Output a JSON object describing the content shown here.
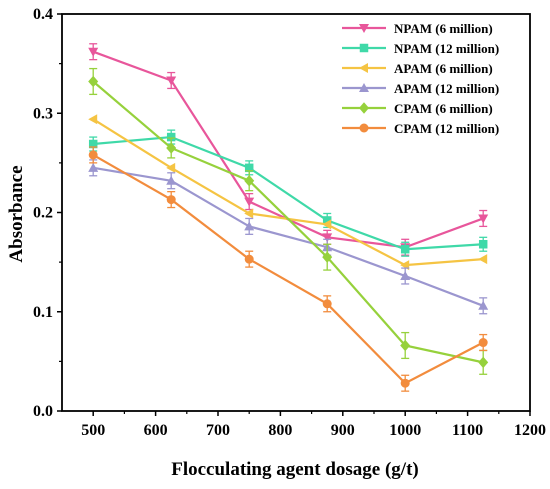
{
  "chart_data": {
    "type": "line",
    "title": "",
    "xlabel": "Flocculating agent dosage (g/t)",
    "ylabel": "Absorbance",
    "xlim": [
      450,
      1200
    ],
    "ylim": [
      0.0,
      0.4
    ],
    "xticks": [
      500,
      600,
      700,
      800,
      900,
      1000,
      1100,
      1200
    ],
    "yticks": [
      0.0,
      0.1,
      0.2,
      0.3,
      0.4
    ],
    "xtick_labels": [
      "500",
      "600",
      "700",
      "800",
      "900",
      "1000",
      "1100",
      "1200"
    ],
    "ytick_labels": [
      "0.0",
      "0.1",
      "0.2",
      "0.3",
      "0.4"
    ],
    "grid": false,
    "legend_position": "top-right",
    "x": [
      500,
      625,
      750,
      875,
      1000,
      1125
    ],
    "series": [
      {
        "name": "NPAM (6 million)",
        "color": "#e8569b",
        "marker": "triangle-down",
        "values": [
          0.362,
          0.333,
          0.211,
          0.175,
          0.165,
          0.194
        ],
        "errors": [
          0.008,
          0.008,
          0.008,
          0.007,
          0.008,
          0.008
        ]
      },
      {
        "name": "NPAM (12 million)",
        "color": "#3fd9a8",
        "marker": "square",
        "values": [
          0.269,
          0.276,
          0.245,
          0.192,
          0.163,
          0.168
        ],
        "errors": [
          0.007,
          0.007,
          0.007,
          0.007,
          0.007,
          0.007
        ]
      },
      {
        "name": "APAM (6 million)",
        "color": "#f5c443",
        "marker": "triangle-left",
        "values": [
          0.294,
          0.245,
          0.199,
          0.188,
          0.147,
          0.153
        ],
        "errors": [
          0.0,
          0.0,
          0.0,
          0.0,
          0.0,
          0.0
        ]
      },
      {
        "name": "APAM (12 million)",
        "color": "#9b96cf",
        "marker": "triangle-up",
        "values": [
          0.245,
          0.232,
          0.186,
          0.165,
          0.136,
          0.106
        ],
        "errors": [
          0.008,
          0.008,
          0.008,
          0.008,
          0.008,
          0.008
        ]
      },
      {
        "name": "CPAM (6 million)",
        "color": "#96d13c",
        "marker": "diamond",
        "values": [
          0.332,
          0.265,
          0.232,
          0.155,
          0.066,
          0.049
        ],
        "errors": [
          0.013,
          0.01,
          0.01,
          0.013,
          0.013,
          0.012
        ]
      },
      {
        "name": "CPAM (12 million)",
        "color": "#f28c3d",
        "marker": "circle",
        "values": [
          0.258,
          0.213,
          0.153,
          0.108,
          0.028,
          0.069
        ],
        "errors": [
          0.008,
          0.008,
          0.008,
          0.008,
          0.008,
          0.008
        ]
      }
    ]
  }
}
